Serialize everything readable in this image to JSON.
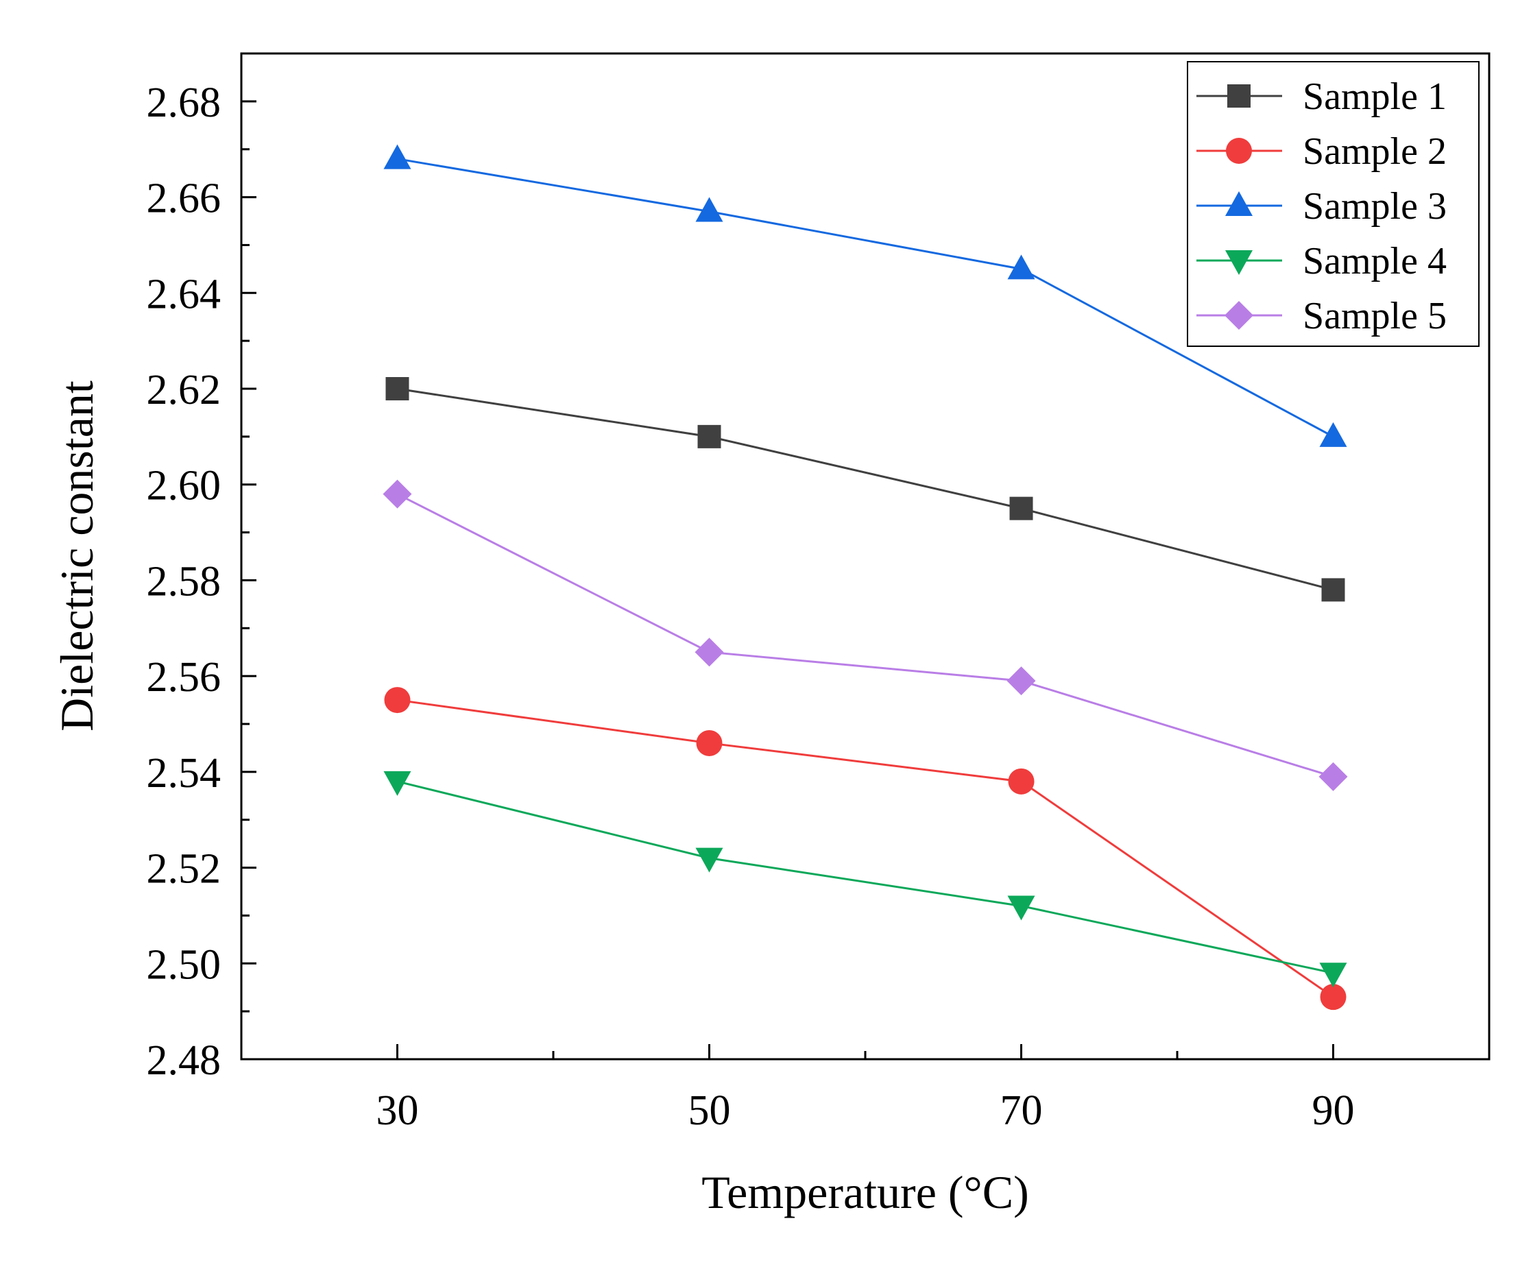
{
  "chart_data": {
    "type": "line",
    "title": "",
    "xlabel": "Temperature (°C)",
    "ylabel": "Dielectric constant",
    "x": [
      30,
      50,
      70,
      90
    ],
    "xlim": [
      20,
      100
    ],
    "ylim": [
      2.48,
      2.69
    ],
    "x_ticks": [
      30,
      50,
      70,
      90
    ],
    "x_tick_labels": [
      "30",
      "50",
      "70",
      "90"
    ],
    "y_ticks": [
      2.48,
      2.5,
      2.52,
      2.54,
      2.56,
      2.58,
      2.6,
      2.62,
      2.64,
      2.66,
      2.68
    ],
    "y_tick_labels": [
      "2.48",
      "2.50",
      "2.52",
      "2.54",
      "2.56",
      "2.58",
      "2.60",
      "2.62",
      "2.64",
      "2.66",
      "2.68"
    ],
    "grid": false,
    "legend_position": "top-right",
    "series": [
      {
        "name": "Sample 1",
        "values": [
          2.62,
          2.61,
          2.595,
          2.578
        ],
        "color": "#404040",
        "marker": "square"
      },
      {
        "name": "Sample 2",
        "values": [
          2.555,
          2.546,
          2.538,
          2.493
        ],
        "color": "#f03c3c",
        "marker": "circle"
      },
      {
        "name": "Sample 3",
        "values": [
          2.668,
          2.657,
          2.645,
          2.61
        ],
        "color": "#1469e0",
        "marker": "triangle-up"
      },
      {
        "name": "Sample 4",
        "values": [
          2.538,
          2.522,
          2.512,
          2.498
        ],
        "color": "#0ca85a",
        "marker": "triangle-down"
      },
      {
        "name": "Sample 5",
        "values": [
          2.598,
          2.565,
          2.559,
          2.539
        ],
        "color": "#b97ee6",
        "marker": "diamond"
      }
    ]
  }
}
